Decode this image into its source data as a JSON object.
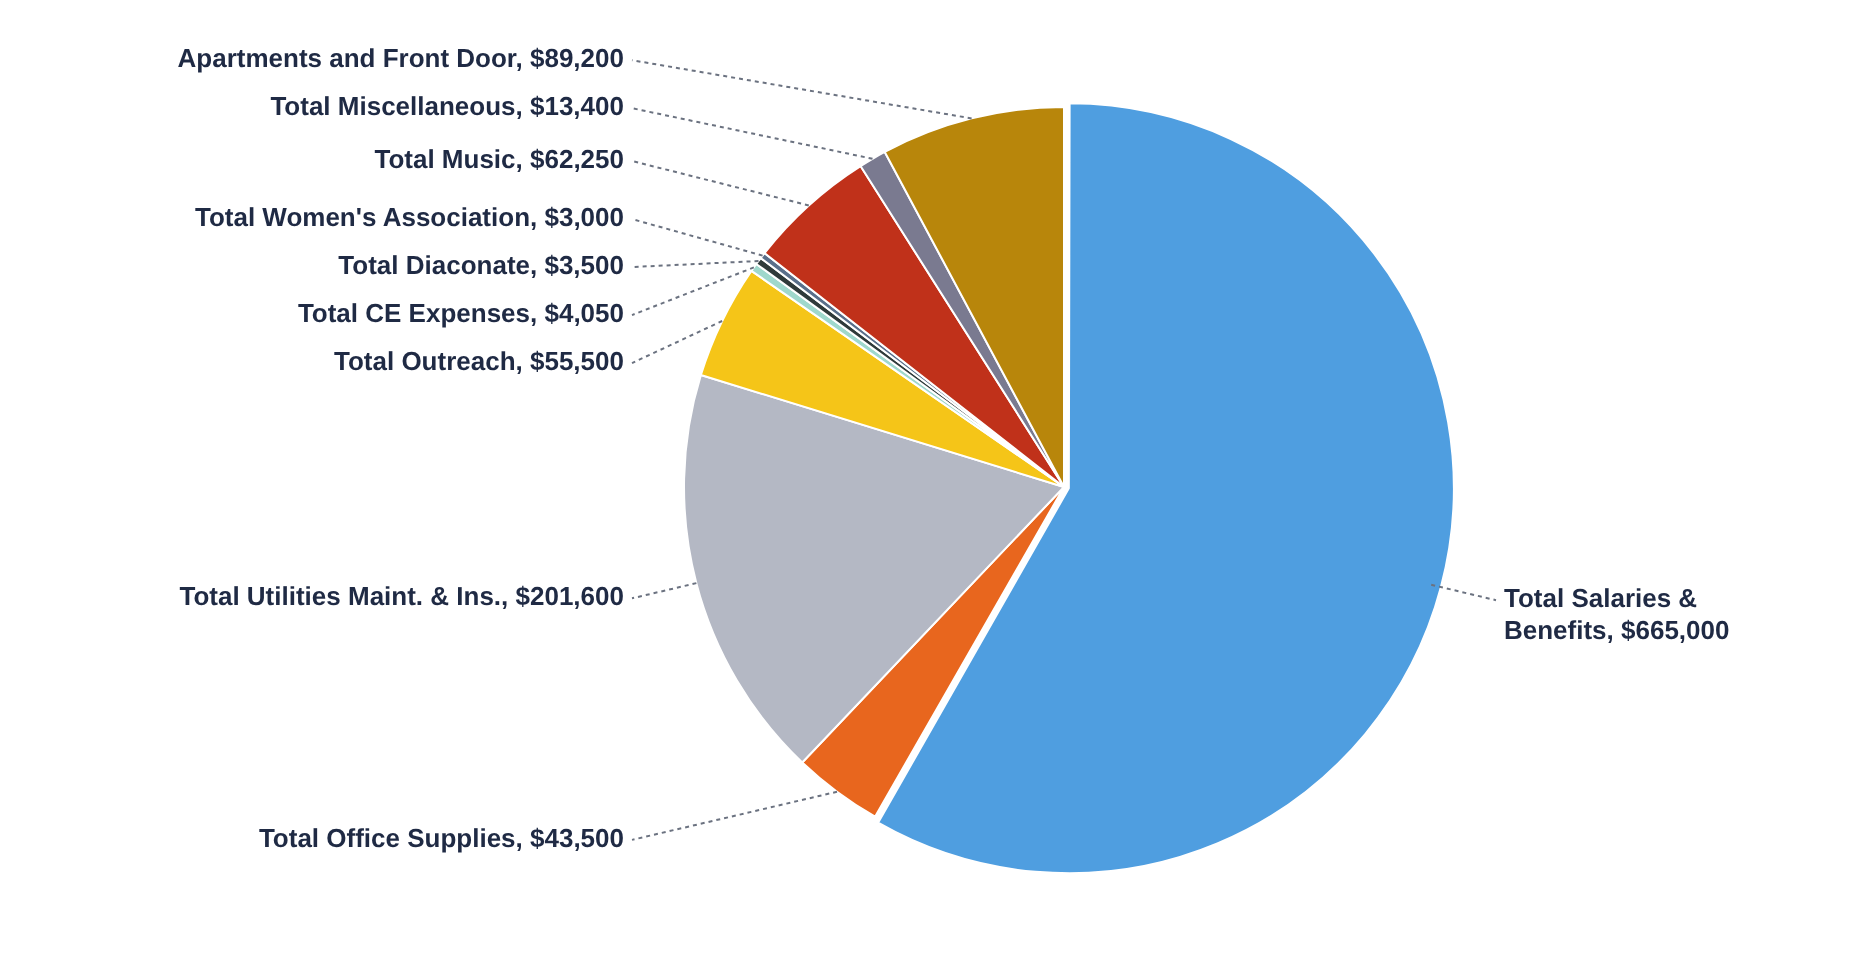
{
  "chart_data": {
    "type": "pie",
    "categories": [
      "Total Salaries & Benefits",
      "Total Office Supplies",
      "Total Utilities Maint. & Ins.",
      "Total Outreach",
      "Total CE Expenses",
      "Total Diaconate",
      "Total Women's Association",
      "Total Music",
      "Total Miscellaneous",
      "Apartments and Front Door"
    ],
    "values": [
      665000,
      43500,
      201600,
      55500,
      4050,
      3500,
      3000,
      62250,
      13400,
      89200
    ],
    "value_labels": [
      "$665,000",
      "$43,500",
      "$201,600",
      "$55,500",
      "$4,050",
      "$3,500",
      "$3,000",
      "$62,250",
      "$13,400",
      "$89,200"
    ],
    "colors": [
      "#4f9ee0",
      "#e8661e",
      "#b4b8c4",
      "#f5c518",
      "#9fd8cc",
      "#2f3a3a",
      "#5a6f8a",
      "#c0311a",
      "#7a7a90",
      "#b8860b"
    ],
    "legend": false
  }
}
